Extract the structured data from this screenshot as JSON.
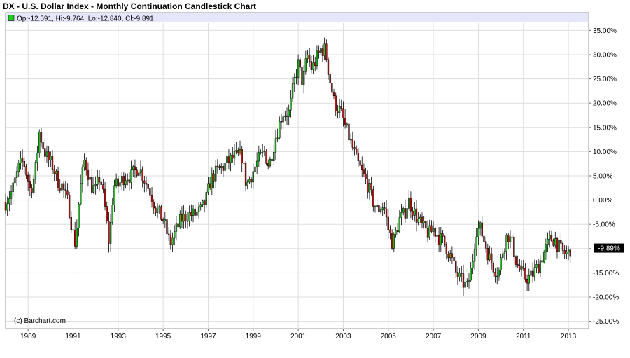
{
  "chart_data": {
    "type": "candlestick",
    "title": "DX - U.S. Dollar Index - Monthly Continuation Candlestick Chart",
    "ohlc_label": "Op:-12.591, Hi:-9.764, Lo:-12.840, Cl:-9.891",
    "last_value_label": "-9.89%",
    "copyright": "(c) Barchart.com",
    "x_ticks": [
      "1989",
      "1991",
      "1993",
      "1995",
      "1997",
      "1999",
      "2001",
      "2003",
      "2005",
      "2007",
      "2009",
      "2011",
      "2013"
    ],
    "y_ticks": [
      "35.00%",
      "30.00%",
      "25.00%",
      "20.00%",
      "15.00%",
      "10.00%",
      "5.00%",
      "0.00%",
      "-5.00%",
      "-10.00%",
      "-15.00%",
      "-20.00%",
      "-25.00%"
    ],
    "xlim": [
      1988.0,
      2013.9
    ],
    "ylim": [
      -26.5,
      36.5
    ],
    "grid": true,
    "colors": {
      "up": "#22cc22",
      "down": "#cc1111",
      "header": "#e6e6fa",
      "grid": "#dddddd"
    },
    "close_anchors": [
      [
        1988.0,
        -0.5
      ],
      [
        1988.3,
        2
      ],
      [
        1988.6,
        7
      ],
      [
        1988.8,
        8
      ],
      [
        1989.1,
        2
      ],
      [
        1989.3,
        5
      ],
      [
        1989.5,
        14
      ],
      [
        1989.8,
        9
      ],
      [
        1990.1,
        7
      ],
      [
        1990.3,
        4
      ],
      [
        1990.5,
        3
      ],
      [
        1990.8,
        -1
      ],
      [
        1991.0,
        -7
      ],
      [
        1991.1,
        -9
      ],
      [
        1991.3,
        2
      ],
      [
        1991.5,
        8
      ],
      [
        1991.6,
        7
      ],
      [
        1991.8,
        3
      ],
      [
        1992.0,
        2
      ],
      [
        1992.2,
        5
      ],
      [
        1992.4,
        -1
      ],
      [
        1992.6,
        -9
      ],
      [
        1992.8,
        3
      ],
      [
        1993.0,
        3
      ],
      [
        1993.3,
        5
      ],
      [
        1993.6,
        5
      ],
      [
        1993.9,
        7
      ],
      [
        1994.1,
        5
      ],
      [
        1994.4,
        2
      ],
      [
        1994.7,
        -2
      ],
      [
        1995.0,
        -4
      ],
      [
        1995.3,
        -9
      ],
      [
        1995.5,
        -7
      ],
      [
        1995.8,
        -4
      ],
      [
        1996.1,
        -3
      ],
      [
        1996.4,
        -3
      ],
      [
        1996.7,
        -2
      ],
      [
        1996.9,
        0
      ],
      [
        1997.1,
        4
      ],
      [
        1997.4,
        6
      ],
      [
        1997.7,
        7
      ],
      [
        1997.9,
        8
      ],
      [
        1998.2,
        9
      ],
      [
        1998.5,
        9
      ],
      [
        1998.7,
        3
      ],
      [
        1998.9,
        5
      ],
      [
        1999.2,
        8
      ],
      [
        1999.5,
        10
      ],
      [
        1999.7,
        7
      ],
      [
        2000.0,
        13
      ],
      [
        2000.3,
        18
      ],
      [
        2000.6,
        18
      ],
      [
        2000.8,
        24
      ],
      [
        2001.0,
        28
      ],
      [
        2001.2,
        24
      ],
      [
        2001.4,
        30
      ],
      [
        2001.6,
        27
      ],
      [
        2001.8,
        29
      ],
      [
        2002.0,
        31
      ],
      [
        2002.2,
        31
      ],
      [
        2002.4,
        25
      ],
      [
        2002.6,
        20
      ],
      [
        2002.9,
        18
      ],
      [
        2003.1,
        15
      ],
      [
        2003.4,
        11
      ],
      [
        2003.6,
        8
      ],
      [
        2003.9,
        5
      ],
      [
        2004.1,
        3
      ],
      [
        2004.3,
        0
      ],
      [
        2004.5,
        -2
      ],
      [
        2004.8,
        -1
      ],
      [
        2005.0,
        -6
      ],
      [
        2005.2,
        -9
      ],
      [
        2005.5,
        -4
      ],
      [
        2005.7,
        -3
      ],
      [
        2005.9,
        0
      ],
      [
        2006.1,
        -2
      ],
      [
        2006.3,
        -4
      ],
      [
        2006.6,
        -6
      ],
      [
        2006.8,
        -7
      ],
      [
        2007.0,
        -6
      ],
      [
        2007.3,
        -8
      ],
      [
        2007.5,
        -9
      ],
      [
        2007.8,
        -12
      ],
      [
        2008.0,
        -15
      ],
      [
        2008.3,
        -17
      ],
      [
        2008.5,
        -18
      ],
      [
        2008.7,
        -14
      ],
      [
        2008.9,
        -6
      ],
      [
        2009.1,
        -6
      ],
      [
        2009.3,
        -9
      ],
      [
        2009.5,
        -12
      ],
      [
        2009.7,
        -14
      ],
      [
        2009.9,
        -15
      ],
      [
        2010.1,
        -10
      ],
      [
        2010.3,
        -7
      ],
      [
        2010.5,
        -9
      ],
      [
        2010.7,
        -13
      ],
      [
        2010.9,
        -15
      ],
      [
        2011.1,
        -16
      ],
      [
        2011.3,
        -16
      ],
      [
        2011.6,
        -14
      ],
      [
        2011.8,
        -12
      ],
      [
        2012.0,
        -10
      ],
      [
        2012.2,
        -8
      ],
      [
        2012.4,
        -8
      ],
      [
        2012.6,
        -10
      ],
      [
        2012.8,
        -11
      ],
      [
        2013.0,
        -11
      ],
      [
        2013.1,
        -9.9
      ]
    ]
  }
}
